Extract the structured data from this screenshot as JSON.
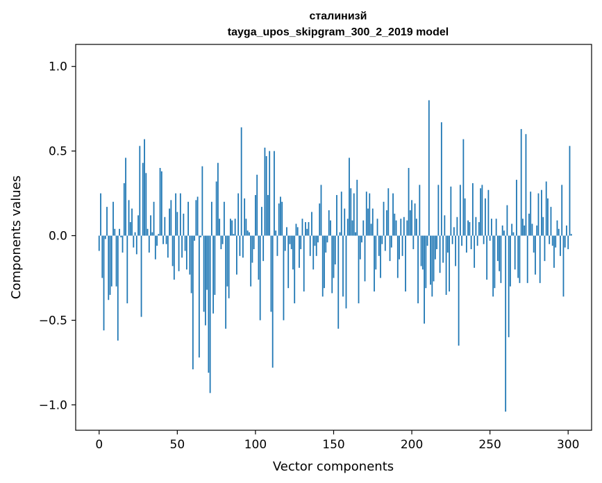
{
  "chart_data": {
    "type": "bar",
    "title": "сталинизй",
    "subtitle": "tayga_upos_skipgram_300_2_2019 model",
    "xlabel": "Vector components",
    "ylabel": "Components values",
    "xlim": [
      -15,
      315
    ],
    "ylim": [
      -1.15,
      1.13
    ],
    "xticks": [
      0,
      50,
      100,
      150,
      200,
      250,
      300
    ],
    "xtick_labels": [
      "0",
      "50",
      "100",
      "150",
      "200",
      "250",
      "300"
    ],
    "yticks": [
      -1.0,
      -0.5,
      0.0,
      0.5,
      1.0
    ],
    "ytick_labels": [
      "−1.0",
      "−0.5",
      "0.0",
      "0.5",
      "1.0"
    ],
    "bar_color": "#1f77b4",
    "values": [
      -0.09,
      0.25,
      -0.25,
      -0.56,
      -0.02,
      0.17,
      -0.38,
      -0.35,
      -0.3,
      0.2,
      0.04,
      -0.3,
      -0.62,
      0.04,
      -0.01,
      -0.1,
      0.31,
      0.46,
      -0.4,
      0.21,
      0.08,
      0.16,
      -0.07,
      0.02,
      -0.11,
      0.12,
      0.53,
      -0.48,
      0.43,
      0.57,
      0.37,
      0.04,
      -0.1,
      0.12,
      0.02,
      0.2,
      -0.14,
      -0.06,
      0.01,
      0.4,
      0.38,
      -0.05,
      0.11,
      -0.05,
      -0.13,
      0.16,
      0.21,
      -0.18,
      -0.26,
      0.25,
      0.14,
      -0.21,
      0.25,
      -0.13,
      0.13,
      -0.09,
      -0.2,
      0.2,
      -0.23,
      -0.34,
      -0.79,
      -0.03,
      0.21,
      0.23,
      -0.72,
      -0.01,
      0.41,
      -0.45,
      -0.53,
      -0.32,
      -0.81,
      -0.93,
      0.2,
      -0.46,
      -0.35,
      0.32,
      0.43,
      0.1,
      -0.08,
      -0.05,
      0.2,
      -0.55,
      -0.3,
      -0.37,
      0.1,
      0.09,
      0.01,
      0.1,
      -0.23,
      0.25,
      -0.12,
      0.64,
      -0.13,
      0.22,
      0.1,
      0.03,
      0.02,
      -0.3,
      -0.16,
      -0.08,
      0.24,
      0.36,
      -0.26,
      -0.5,
      0.17,
      -0.15,
      0.52,
      0.47,
      0.24,
      0.5,
      -0.45,
      -0.78,
      0.5,
      0.03,
      -0.12,
      0.19,
      0.23,
      0.2,
      -0.5,
      -0.09,
      0.05,
      -0.31,
      -0.05,
      -0.08,
      -0.2,
      -0.4,
      0.07,
      0.05,
      -0.19,
      -0.08,
      0.1,
      -0.33,
      0.08,
      0.04,
      0.08,
      -0.12,
      0.14,
      -0.2,
      -0.06,
      -0.12,
      -0.04,
      0.19,
      0.3,
      -0.36,
      -0.31,
      -0.1,
      -0.04,
      0.15,
      0.09,
      -0.34,
      -0.25,
      -0.17,
      0.24,
      -0.55,
      0.02,
      0.26,
      -0.36,
      0.16,
      -0.43,
      0.1,
      0.46,
      0.28,
      0.09,
      0.25,
      0.02,
      0.33,
      -0.4,
      -0.14,
      -0.04,
      0.09,
      -0.27,
      0.26,
      0.16,
      0.25,
      0.07,
      0.16,
      -0.33,
      -0.2,
      0.1,
      -0.12,
      -0.25,
      -0.05,
      0.2,
      -0.09,
      0.15,
      0.28,
      -0.15,
      -0.07,
      0.25,
      0.13,
      0.09,
      -0.25,
      -0.14,
      0.1,
      -0.12,
      0.11,
      -0.33,
      0.09,
      0.4,
      0.15,
      0.21,
      -0.08,
      0.19,
      0.1,
      -0.4,
      0.3,
      -0.18,
      -0.2,
      -0.52,
      -0.31,
      -0.06,
      0.8,
      -0.29,
      -0.36,
      -0.27,
      -0.14,
      -0.08,
      0.3,
      -0.22,
      0.67,
      -0.16,
      0.12,
      -0.35,
      -0.1,
      -0.33,
      0.29,
      -0.05,
      0.05,
      -0.18,
      0.11,
      -0.65,
      0.3,
      -0.06,
      0.57,
      0.22,
      -0.1,
      0.09,
      0.08,
      -0.08,
      0.31,
      -0.19,
      0.11,
      -0.06,
      0.08,
      0.28,
      0.3,
      -0.05,
      0.22,
      -0.26,
      0.27,
      -0.03,
      0.1,
      -0.36,
      -0.31,
      0.1,
      -0.15,
      -0.21,
      -0.28,
      0.06,
      0.03,
      -1.04,
      0.18,
      -0.6,
      -0.3,
      0.07,
      0.02,
      -0.2,
      0.33,
      -0.25,
      -0.28,
      0.63,
      0.1,
      0.06,
      0.6,
      -0.28,
      0.13,
      0.26,
      0.07,
      -0.1,
      -0.23,
      0.06,
      0.25,
      -0.28,
      0.27,
      0.11,
      -0.15,
      0.32,
      0.22,
      -0.05,
      0.17,
      -0.06,
      -0.19,
      -0.07,
      0.09,
      0.04,
      -0.12,
      0.3,
      -0.36,
      -0.07,
      0.06,
      -0.08,
      0.53,
      0.01
    ]
  }
}
